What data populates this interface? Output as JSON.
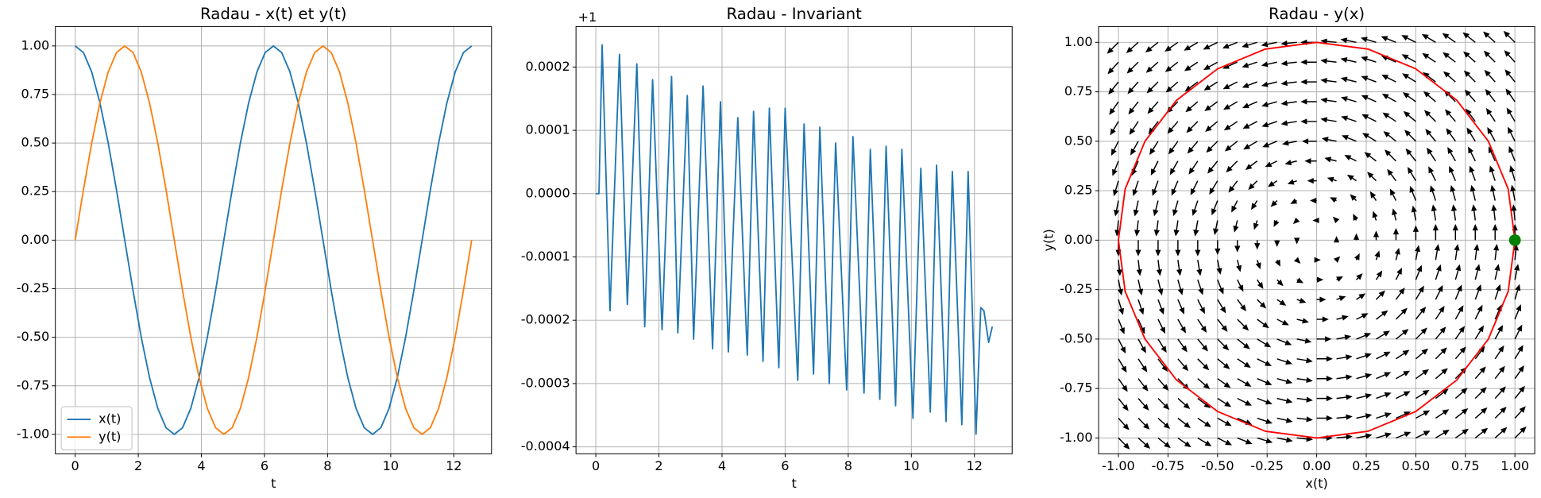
{
  "chart_data": [
    {
      "type": "line",
      "title": "Radau - x(t) et y(t)",
      "xlabel": "t",
      "x": [
        0,
        0.262,
        0.524,
        0.785,
        1.047,
        1.309,
        1.571,
        1.833,
        2.094,
        2.356,
        2.618,
        2.88,
        3.142,
        3.403,
        3.665,
        3.927,
        4.189,
        4.451,
        4.712,
        4.974,
        5.236,
        5.498,
        5.76,
        6.021,
        6.283,
        6.545,
        6.807,
        7.069,
        7.33,
        7.592,
        7.854,
        8.116,
        8.378,
        8.639,
        8.901,
        9.163,
        9.425,
        9.687,
        9.948,
        10.21,
        10.472,
        10.734,
        10.996,
        11.257,
        11.519,
        11.781,
        12.043,
        12.305,
        12.566
      ],
      "series": [
        {
          "name": "x(t)",
          "color": "#1f77b4",
          "values": [
            1,
            0.966,
            0.866,
            0.707,
            0.5,
            0.259,
            0,
            -0.259,
            -0.5,
            -0.707,
            -0.866,
            -0.966,
            -1,
            -0.966,
            -0.866,
            -0.707,
            -0.5,
            -0.259,
            0,
            0.259,
            0.5,
            0.707,
            0.866,
            0.966,
            1,
            0.966,
            0.866,
            0.707,
            0.5,
            0.259,
            0,
            -0.259,
            -0.5,
            -0.707,
            -0.866,
            -0.966,
            -1,
            -0.966,
            -0.866,
            -0.707,
            -0.5,
            -0.259,
            0,
            0.259,
            0.5,
            0.707,
            0.866,
            0.966,
            1
          ]
        },
        {
          "name": "y(t)",
          "color": "#ff7f0e",
          "values": [
            0,
            0.259,
            0.5,
            0.707,
            0.866,
            0.966,
            1,
            0.966,
            0.866,
            0.707,
            0.5,
            0.259,
            0,
            -0.259,
            -0.5,
            -0.707,
            -0.866,
            -0.966,
            -1,
            -0.966,
            -0.866,
            -0.707,
            -0.5,
            -0.259,
            0,
            0.259,
            0.5,
            0.707,
            0.866,
            0.966,
            1,
            0.966,
            0.866,
            0.707,
            0.5,
            0.259,
            0,
            -0.259,
            -0.5,
            -0.707,
            -0.866,
            -0.966,
            -1,
            -0.966,
            -0.866,
            -0.707,
            -0.5,
            -0.259,
            0
          ]
        }
      ],
      "xlim": [
        -0.628,
        13.195
      ],
      "xticks": [
        0,
        2,
        4,
        6,
        8,
        10,
        12
      ],
      "ylim": [
        -1.1,
        1.1
      ],
      "yticks": [
        {
          "value": -1,
          "label": "-1.00"
        },
        {
          "value": -0.75,
          "label": "-0.75"
        },
        {
          "value": -0.5,
          "label": "-0.50"
        },
        {
          "value": -0.25,
          "label": "-0.25"
        },
        {
          "value": 0,
          "label": "0.00"
        },
        {
          "value": 0.25,
          "label": "0.25"
        },
        {
          "value": 0.5,
          "label": "0.50"
        },
        {
          "value": 0.75,
          "label": "0.75"
        },
        {
          "value": 1,
          "label": "1.00"
        }
      ],
      "grid": true,
      "legend": "lower left"
    },
    {
      "type": "line",
      "title": "Radau - Invariant",
      "xlabel": "t",
      "offset_text": "+1",
      "x": [
        0,
        0.1,
        0.2,
        0.45,
        0.75,
        1.0,
        1.3,
        1.55,
        1.8,
        2.1,
        2.4,
        2.6,
        2.9,
        3.1,
        3.4,
        3.7,
        3.95,
        4.2,
        4.5,
        4.8,
        5.0,
        5.3,
        5.5,
        5.8,
        6.0,
        6.4,
        6.6,
        6.9,
        7.1,
        7.4,
        7.6,
        7.95,
        8.15,
        8.5,
        8.7,
        9.0,
        9.2,
        9.5,
        9.7,
        10.05,
        10.3,
        10.6,
        10.8,
        11.1,
        11.3,
        11.6,
        11.8,
        12.05,
        12.2,
        12.3,
        12.45,
        12.566
      ],
      "series": [
        {
          "color": "#1f77b4",
          "values": [
            0,
            0,
            0.000235,
            -0.000185,
            0.00022,
            -0.000175,
            0.000205,
            -0.00021,
            0.00018,
            -0.000215,
            0.000185,
            -0.00022,
            0.000155,
            -0.00023,
            0.00017,
            -0.000245,
            0.000145,
            -0.00025,
            0.00012,
            -0.000255,
            0.00013,
            -0.000265,
            0.000135,
            -0.000275,
            0.000135,
            -0.000295,
            0.00011,
            -0.000285,
            0.000105,
            -0.0003,
            8e-05,
            -0.00031,
            9e-05,
            -0.000315,
            7e-05,
            -0.000325,
            7.5e-05,
            -0.000335,
            7e-05,
            -0.000355,
            4e-05,
            -0.000345,
            4.5e-05,
            -0.00036,
            3.5e-05,
            -0.000365,
            3.5e-05,
            -0.00038,
            -0.00018,
            -0.000185,
            -0.000235,
            -0.00021
          ]
        }
      ],
      "xlim": [
        -0.628,
        13.195
      ],
      "xticks": [
        0,
        2,
        4,
        6,
        8,
        10,
        12
      ],
      "ylim": [
        -0.000411,
        0.000264
      ],
      "yticks": [
        {
          "value": -0.0004,
          "label": "-0.0004"
        },
        {
          "value": -0.0003,
          "label": "-0.0003"
        },
        {
          "value": -0.0002,
          "label": "-0.0002"
        },
        {
          "value": -0.0001,
          "label": "-0.0001"
        },
        {
          "value": 0,
          "label": "0.0000"
        },
        {
          "value": 0.0001,
          "label": "0.0001"
        },
        {
          "value": 0.0002,
          "label": "0.0002"
        }
      ],
      "grid": true
    },
    {
      "type": "line",
      "title": "Radau - y(x)",
      "xlabel": "x(t)",
      "ylabel": "y(t)",
      "x": [
        1,
        0.966,
        0.866,
        0.707,
        0.5,
        0.259,
        0,
        -0.259,
        -0.5,
        -0.707,
        -0.866,
        -0.966,
        -1,
        -0.966,
        -0.866,
        -0.707,
        -0.5,
        -0.259,
        0,
        0.259,
        0.5,
        0.707,
        0.866,
        0.966,
        1
      ],
      "series": [
        {
          "color": "red",
          "values": [
            0,
            0.259,
            0.5,
            0.707,
            0.866,
            0.966,
            1,
            0.966,
            0.866,
            0.707,
            0.5,
            0.259,
            0,
            -0.259,
            -0.5,
            -0.707,
            -0.866,
            -0.966,
            -1,
            -0.966,
            -0.866,
            -0.707,
            -0.5,
            -0.259,
            0
          ]
        }
      ],
      "marker": {
        "x": 1,
        "y": 0,
        "color": "green"
      },
      "quiver": {
        "grid": [
          -1,
          -0.9,
          -0.8,
          -0.7,
          -0.6,
          -0.5,
          -0.4,
          -0.3,
          -0.2,
          -0.1,
          0,
          0.1,
          0.2,
          0.3,
          0.4,
          0.5,
          0.6,
          0.7,
          0.8,
          0.9,
          1
        ],
        "color": "black"
      },
      "xlim": [
        -1.1,
        1.1
      ],
      "xticks": [
        {
          "value": -1,
          "label": "-1.00"
        },
        {
          "value": -0.75,
          "label": "-0.75"
        },
        {
          "value": -0.5,
          "label": "-0.50"
        },
        {
          "value": -0.25,
          "label": "-0.25"
        },
        {
          "value": 0,
          "label": "0.00"
        },
        {
          "value": 0.25,
          "label": "0.25"
        },
        {
          "value": 0.5,
          "label": "0.50"
        },
        {
          "value": 0.75,
          "label": "0.75"
        },
        {
          "value": 1,
          "label": "1.00"
        }
      ],
      "ylim": [
        -1.08,
        1.08
      ],
      "yticks": [
        {
          "value": -1,
          "label": "-1.00"
        },
        {
          "value": -0.75,
          "label": "-0.75"
        },
        {
          "value": -0.5,
          "label": "-0.50"
        },
        {
          "value": -0.25,
          "label": "-0.25"
        },
        {
          "value": 0,
          "label": "0.00"
        },
        {
          "value": 0.25,
          "label": "0.25"
        },
        {
          "value": 0.5,
          "label": "0.50"
        },
        {
          "value": 0.75,
          "label": "0.75"
        },
        {
          "value": 1,
          "label": "1.00"
        }
      ],
      "grid": true
    }
  ]
}
